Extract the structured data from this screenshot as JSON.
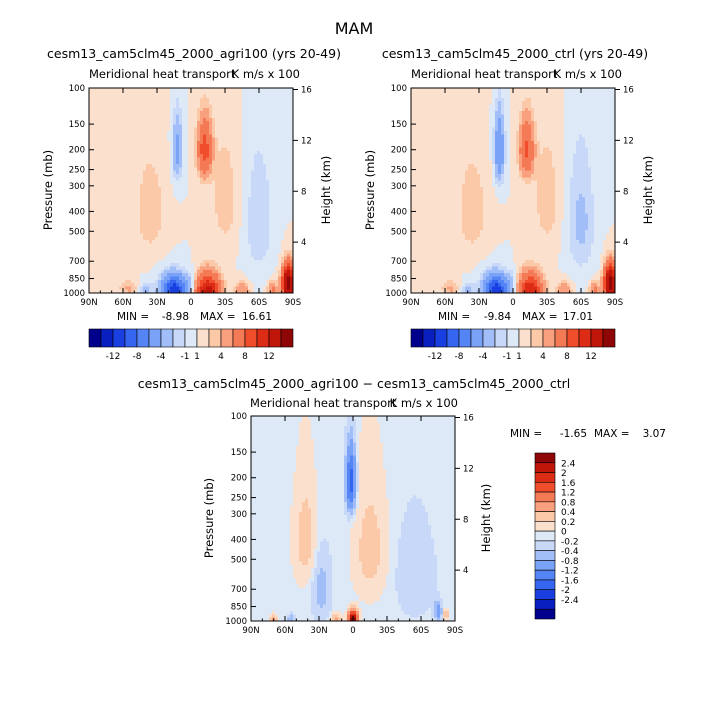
{
  "page": {
    "title": "MAM"
  },
  "colors": {
    "neg": [
      "#00008c",
      "#0a1fc0",
      "#1a3fe0",
      "#3666f0",
      "#5585f5",
      "#7aa2f7",
      "#a2bef8",
      "#c8d8f8",
      "#dde9f6"
    ],
    "pos": [
      "#fbe0cd",
      "#fbc8a8",
      "#f9a07e",
      "#f47a55",
      "#ef4d2c",
      "#dd2c16",
      "#c01509",
      "#8f0606"
    ],
    "background_contour": "#dde9f6",
    "frame": "#000000"
  },
  "chart_data": [
    {
      "type": "heatmap",
      "id": "agri100",
      "title": "cesm13_cam5clm45_2000_agri100 (yrs 20-49)",
      "subtitle_left": "Meridional heat transport",
      "subtitle_right": "K m/s x 100",
      "ylabel": "Pressure (mb)",
      "y2label": "Height (km)",
      "x_ticks": [
        "90N",
        "60N",
        "30N",
        "0",
        "30S",
        "60S",
        "90S"
      ],
      "y_ticks": [
        "100",
        "150",
        "200",
        "250",
        "300",
        "400",
        "500",
        "700",
        "850",
        "1000"
      ],
      "y2_ticks": [
        "16",
        "12",
        "8",
        "4"
      ],
      "min_label": "MIN =",
      "min_value": "-8.98",
      "max_label": "MAX =",
      "max_value": "16.61",
      "colorbar_labels": [
        "-12",
        "-8",
        "-4",
        "-1",
        "1",
        "4",
        "8",
        "12"
      ],
      "features": [
        {
          "lat": -12,
          "p": 200,
          "value": 5,
          "sx": 6,
          "sy": 60
        },
        {
          "lat": 12,
          "p": 200,
          "value": -2.5,
          "sx": 4,
          "sy": 70
        },
        {
          "lat": -30,
          "p": 350,
          "value": 0.8,
          "sx": 12,
          "sy": 230
        },
        {
          "lat": 36,
          "p": 400,
          "value": 1.0,
          "sx": 12,
          "sy": 200
        },
        {
          "lat": -60,
          "p": 450,
          "value": -1.0,
          "sx": 12,
          "sy": 300
        },
        {
          "lat": 15,
          "p": 980,
          "value": -10,
          "sx": 10,
          "sy": 150
        },
        {
          "lat": 0,
          "p": 900,
          "value": -1.0,
          "sx": 5,
          "sy": 120
        },
        {
          "lat": -15,
          "p": 980,
          "value": 9,
          "sx": 10,
          "sy": 170
        },
        {
          "lat": 55,
          "p": 950,
          "value": 1.2,
          "sx": 8,
          "sy": 80
        },
        {
          "lat": 40,
          "p": 960,
          "value": -1.2,
          "sx": 6,
          "sy": 80
        },
        {
          "lat": -45,
          "p": 980,
          "value": 2,
          "sx": 6,
          "sy": 100
        },
        {
          "lat": -72,
          "p": 960,
          "value": 2.5,
          "sx": 4,
          "sy": 80
        },
        {
          "lat": -86,
          "p": 900,
          "value": 14,
          "sx": 5,
          "sy": 160
        }
      ]
    },
    {
      "type": "heatmap",
      "id": "ctrl",
      "title": "cesm13_cam5clm45_2000_ctrl (yrs 20-49)",
      "subtitle_left": "Meridional heat transport",
      "subtitle_right": "K m/s x 100",
      "ylabel": "Pressure (mb)",
      "y2label": "Height (km)",
      "x_ticks": [
        "90N",
        "60N",
        "30N",
        "0",
        "30S",
        "60S",
        "90S"
      ],
      "y_ticks": [
        "100",
        "150",
        "200",
        "250",
        "300",
        "400",
        "500",
        "700",
        "850",
        "1000"
      ],
      "y2_ticks": [
        "16",
        "12",
        "8",
        "4"
      ],
      "min_label": "MIN =",
      "min_value": "-9.84",
      "max_label": "MAX =",
      "max_value": "17.01",
      "colorbar_labels": [
        "-12",
        "-8",
        "-4",
        "-1",
        "1",
        "4",
        "8",
        "12"
      ],
      "features": [
        {
          "lat": -12,
          "p": 200,
          "value": 4.5,
          "sx": 6,
          "sy": 60
        },
        {
          "lat": 12,
          "p": 200,
          "value": -4,
          "sx": 4,
          "sy": 70
        },
        {
          "lat": -30,
          "p": 350,
          "value": 0.8,
          "sx": 12,
          "sy": 230
        },
        {
          "lat": 36,
          "p": 400,
          "value": 1.0,
          "sx": 12,
          "sy": 200
        },
        {
          "lat": -60,
          "p": 450,
          "value": -1.2,
          "sx": 12,
          "sy": 300
        },
        {
          "lat": 15,
          "p": 980,
          "value": -10,
          "sx": 10,
          "sy": 150
        },
        {
          "lat": 0,
          "p": 900,
          "value": -1.0,
          "sx": 5,
          "sy": 120
        },
        {
          "lat": -15,
          "p": 980,
          "value": 8,
          "sx": 10,
          "sy": 170
        },
        {
          "lat": 55,
          "p": 950,
          "value": 1.2,
          "sx": 8,
          "sy": 80
        },
        {
          "lat": 40,
          "p": 960,
          "value": -1.2,
          "sx": 6,
          "sy": 80
        },
        {
          "lat": -45,
          "p": 980,
          "value": 2,
          "sx": 6,
          "sy": 100
        },
        {
          "lat": -72,
          "p": 960,
          "value": 2.5,
          "sx": 4,
          "sy": 80
        },
        {
          "lat": -86,
          "p": 900,
          "value": 14,
          "sx": 5,
          "sy": 160
        }
      ]
    },
    {
      "type": "heatmap",
      "id": "diff",
      "title": "cesm13_cam5clm45_2000_agri100 − cesm13_cam5clm45_2000_ctrl",
      "subtitle_left": "Meridional heat transport",
      "subtitle_right": "K m/s x 100",
      "ylabel": "Pressure (mb)",
      "y2label": "Height (km)",
      "x_ticks": [
        "90N",
        "60N",
        "30N",
        "0",
        "30S",
        "60S",
        "90S"
      ],
      "y_ticks": [
        "100",
        "150",
        "200",
        "250",
        "300",
        "400",
        "500",
        "700",
        "850",
        "1000"
      ],
      "y2_ticks": [
        "16",
        "12",
        "8",
        "4"
      ],
      "min_label": "MIN =",
      "min_value": "-1.65",
      "max_label": "MAX =",
      "max_value": "3.07",
      "colorbar_labels": [
        "2.4",
        "2",
        "1.6",
        "1.2",
        "0.8",
        "0.4",
        "0.2",
        "0",
        "-0.2",
        "-0.4",
        "-0.8",
        "-1.2",
        "-1.6",
        "-2",
        "-2.4"
      ],
      "features": [
        {
          "lat": 2,
          "p": 210,
          "value": -1.5,
          "sx": 4,
          "sy": 70
        },
        {
          "lat": 0,
          "p": 990,
          "value": 3,
          "sx": 4,
          "sy": 90
        },
        {
          "lat": -15,
          "p": 450,
          "value": 0.3,
          "sx": 14,
          "sy": 280
        },
        {
          "lat": 42,
          "p": 400,
          "value": 0.3,
          "sx": 10,
          "sy": 230
        },
        {
          "lat": 28,
          "p": 700,
          "value": -0.3,
          "sx": 8,
          "sy": 260
        },
        {
          "lat": -55,
          "p": 600,
          "value": -0.2,
          "sx": 16,
          "sy": 300
        },
        {
          "lat": 70,
          "p": 980,
          "value": 0.6,
          "sx": 3,
          "sy": 50
        },
        {
          "lat": 55,
          "p": 980,
          "value": -0.4,
          "sx": 3,
          "sy": 50
        },
        {
          "lat": 15,
          "p": 980,
          "value": 0.5,
          "sx": 4,
          "sy": 60
        },
        {
          "lat": -75,
          "p": 900,
          "value": -0.6,
          "sx": 3,
          "sy": 100
        },
        {
          "lat": -82,
          "p": 930,
          "value": 0.4,
          "sx": 2,
          "sy": 60
        }
      ]
    }
  ]
}
